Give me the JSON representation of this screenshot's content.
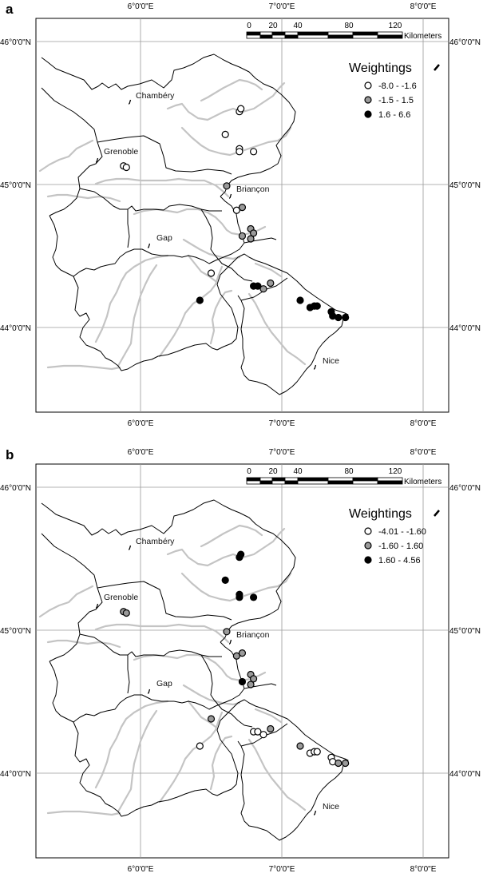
{
  "colors": {
    "low": "#ffffff",
    "mid": "#9a9a9a",
    "high": "#000000",
    "border": "#000000",
    "river": "#c4c4c4",
    "grid": "#9a9a9a"
  },
  "axes": {
    "lon_labels": [
      "6°0'0\"E",
      "7°0'0\"E",
      "8°0'0\"E"
    ],
    "lat_labels": [
      "46°0'0\"N",
      "45°0'0\"N",
      "44°0'0\"N"
    ]
  },
  "scale": {
    "ticks": [
      "0",
      "20",
      "40",
      "80",
      "120"
    ],
    "unit": "Kilometers"
  },
  "cities": [
    {
      "name": "Chambéry",
      "lon": 6.0,
      "lat": 45.64
    },
    {
      "name": "Grenoble",
      "lon": 5.86,
      "lat": 45.22
    },
    {
      "name": "Briançon",
      "lon": 6.72,
      "lat": 44.96
    },
    {
      "name": "Gap",
      "lon": 6.1,
      "lat": 44.64
    },
    {
      "name": "Nice",
      "lon": 7.32,
      "lat": 43.78
    }
  ],
  "stations": [
    {
      "lon": 6.7,
      "lat": 45.51
    },
    {
      "lon": 6.71,
      "lat": 45.53
    },
    {
      "lon": 6.6,
      "lat": 45.35
    },
    {
      "lon": 6.7,
      "lat": 45.25
    },
    {
      "lon": 6.7,
      "lat": 45.23
    },
    {
      "lon": 6.8,
      "lat": 45.23
    },
    {
      "lon": 5.88,
      "lat": 45.13
    },
    {
      "lon": 5.9,
      "lat": 45.12
    },
    {
      "lon": 6.61,
      "lat": 44.99
    },
    {
      "lon": 6.68,
      "lat": 44.82
    },
    {
      "lon": 6.72,
      "lat": 44.84
    },
    {
      "lon": 6.78,
      "lat": 44.69
    },
    {
      "lon": 6.8,
      "lat": 44.66
    },
    {
      "lon": 6.72,
      "lat": 44.64
    },
    {
      "lon": 6.78,
      "lat": 44.62
    },
    {
      "lon": 6.5,
      "lat": 44.38
    },
    {
      "lon": 6.42,
      "lat": 44.19
    },
    {
      "lon": 6.8,
      "lat": 44.29
    },
    {
      "lon": 6.83,
      "lat": 44.29
    },
    {
      "lon": 6.87,
      "lat": 44.27
    },
    {
      "lon": 6.92,
      "lat": 44.31
    },
    {
      "lon": 7.13,
      "lat": 44.19
    },
    {
      "lon": 7.2,
      "lat": 44.14
    },
    {
      "lon": 7.23,
      "lat": 44.15
    },
    {
      "lon": 7.25,
      "lat": 44.15
    },
    {
      "lon": 7.35,
      "lat": 44.11
    },
    {
      "lon": 7.36,
      "lat": 44.08
    },
    {
      "lon": 7.4,
      "lat": 44.07
    },
    {
      "lon": 7.45,
      "lat": 44.07
    }
  ],
  "panels": [
    {
      "label": "a",
      "legend_title": "Weightings",
      "classes": [
        "-8.0 - -1.6",
        "-1.5 - 1.5",
        "1.6 - 6.6"
      ],
      "station_classes": [
        "low",
        "low",
        "low",
        "low",
        "low",
        "low",
        "low",
        "low",
        "mid",
        "low",
        "mid",
        "mid",
        "mid",
        "mid",
        "mid",
        "low",
        "high",
        "high",
        "high",
        "mid",
        "mid",
        "high",
        "high",
        "high",
        "high",
        "high",
        "high",
        "high",
        "high"
      ]
    },
    {
      "label": "b",
      "legend_title": "Weightings",
      "classes": [
        "-4.01 - -1.60",
        "-1.60 - 1.60",
        "1.60 - 4.56"
      ],
      "station_classes": [
        "high",
        "high",
        "high",
        "high",
        "high",
        "high",
        "mid",
        "mid",
        "mid",
        "mid",
        "mid",
        "mid",
        "mid",
        "high",
        "mid",
        "mid",
        "low",
        "low",
        "low",
        "low",
        "mid",
        "mid",
        "low",
        "low",
        "low",
        "low",
        "low",
        "mid",
        "mid"
      ]
    }
  ]
}
